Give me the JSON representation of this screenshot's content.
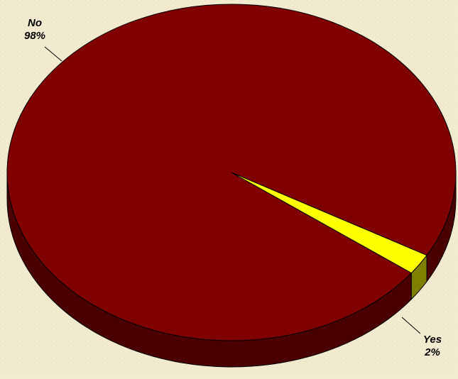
{
  "chart_data": {
    "type": "pie",
    "title": "",
    "categories": [
      "No",
      "Yes"
    ],
    "values": [
      98,
      2
    ],
    "value_labels": [
      "98%",
      "2%"
    ],
    "colors": [
      "#800000",
      "#FFFF00"
    ],
    "side_colors": [
      "#4A0000",
      "#808000"
    ],
    "background": "#F3EBD0",
    "style": "3d-pie",
    "legend": false
  }
}
